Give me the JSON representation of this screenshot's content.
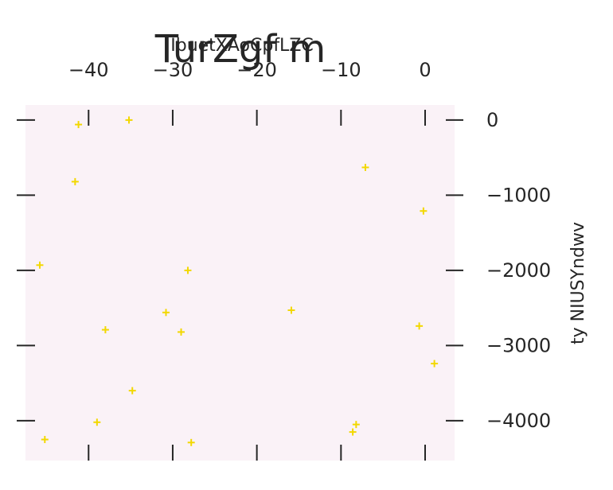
{
  "chart_data": {
    "type": "scatter",
    "title": "TurZgf m",
    "xlabel": "IbuetXAoCpfLZC",
    "ylabel": "ty NIUSYndwv",
    "x_axis_position": "top",
    "y_axis_position": "right",
    "xlim": [
      -47.5,
      3.5
    ],
    "ylim": [
      -4530,
      200
    ],
    "xticks": [
      -40,
      -30,
      -20,
      -10,
      0
    ],
    "xtick_labels": [
      "−40",
      "−30",
      "−20",
      "−10",
      "0"
    ],
    "yticks": [
      0,
      -1000,
      -2000,
      -3000,
      -4000
    ],
    "ytick_labels": [
      "0",
      "−1000",
      "−2000",
      "−3000",
      "−4000"
    ],
    "grid": false,
    "plot_background": "#faf2f7",
    "marker": "+",
    "marker_color": "#f2d800",
    "series": [
      {
        "points": [
          {
            "x": -41.2,
            "y": -60
          },
          {
            "x": -35.2,
            "y": 0
          },
          {
            "x": -41.6,
            "y": -820
          },
          {
            "x": -7.1,
            "y": -630
          },
          {
            "x": -0.2,
            "y": -1210
          },
          {
            "x": -45.8,
            "y": -1930
          },
          {
            "x": -28.2,
            "y": -2000
          },
          {
            "x": -30.8,
            "y": -2560
          },
          {
            "x": -15.9,
            "y": -2530
          },
          {
            "x": -0.7,
            "y": -2740
          },
          {
            "x": -38.0,
            "y": -2790
          },
          {
            "x": -29.0,
            "y": -2820
          },
          {
            "x": 1.1,
            "y": -3240
          },
          {
            "x": -34.8,
            "y": -3600
          },
          {
            "x": -39.0,
            "y": -4020
          },
          {
            "x": -8.2,
            "y": -4050
          },
          {
            "x": -8.6,
            "y": -4150
          },
          {
            "x": -45.2,
            "y": -4250
          },
          {
            "x": -27.8,
            "y": -4290
          }
        ]
      }
    ]
  }
}
